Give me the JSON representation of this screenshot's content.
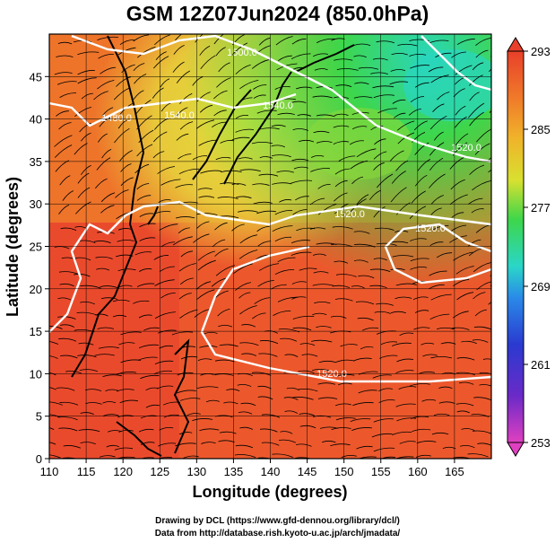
{
  "title": "GSM 12Z07Jun2024 (850.0hPa)",
  "x_axis": {
    "label": "Longitude (degrees)",
    "ticks": [
      "110",
      "115",
      "120",
      "125",
      "130",
      "135",
      "140",
      "145",
      "150",
      "155",
      "160",
      "165"
    ]
  },
  "y_axis": {
    "label": "Latitude  (degrees)",
    "ticks": [
      "0",
      "5",
      "10",
      "15",
      "20",
      "25",
      "30",
      "35",
      "40",
      "45"
    ]
  },
  "colorbar": {
    "ticks": [
      "293",
      "285",
      "277",
      "269",
      "261",
      "253"
    ]
  },
  "contour_labels": [
    "1520.0",
    "1520.0",
    "1520.0",
    "1520.0",
    "1540.0",
    "1540.0",
    "1480.0",
    "1500.0"
  ],
  "credits": {
    "line1": "Drawing by DCL (https://www.gfd-dennou.org/library/dcl/)",
    "line2": "Data from http://database.rish.kyoto-u.ac.jp/arch/jmadata/"
  },
  "colors": {
    "warm": "#e8402a",
    "orange": "#f08a2a",
    "yellow": "#e6d43a",
    "green": "#3ed64a",
    "cyan": "#2ad6c8",
    "magenta": "#e040c0",
    "contour": "#ffffff",
    "stream": "#000000"
  }
}
